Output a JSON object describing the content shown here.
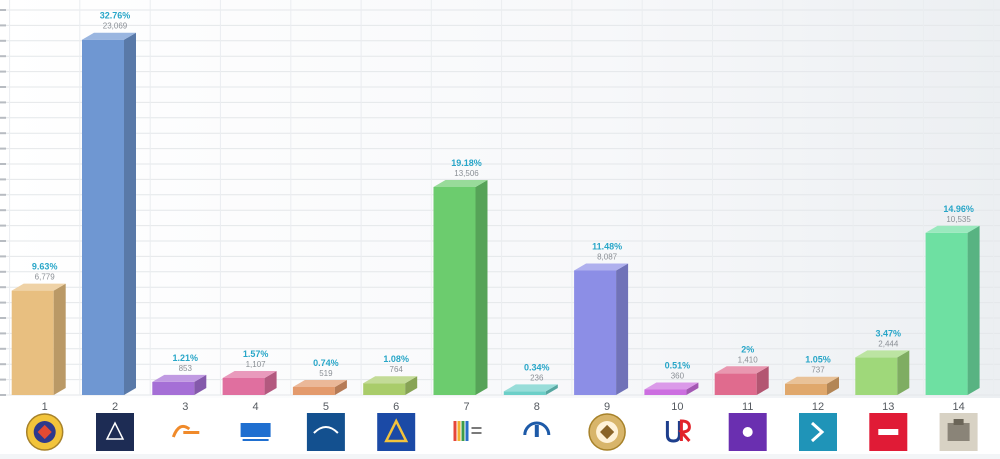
{
  "chart_data": {
    "type": "bar",
    "categories": [
      "1",
      "2",
      "3",
      "4",
      "5",
      "6",
      "7",
      "8",
      "9",
      "10",
      "11",
      "12",
      "13",
      "14"
    ],
    "values": [
      6779,
      23069,
      853,
      1107,
      519,
      764,
      13506,
      236,
      8087,
      360,
      1410,
      737,
      2444,
      10535
    ],
    "value_labels": [
      "6,779",
      "23,069",
      "853",
      "1,107",
      "519",
      "764",
      "13,506",
      "236",
      "8,087",
      "360",
      "1,410",
      "737",
      "2,444",
      "10,535"
    ],
    "percent_labels": [
      "9.63%",
      "32.76%",
      "1.21%",
      "1.57%",
      "0.74%",
      "1.08%",
      "19.18%",
      "0.34%",
      "11.48%",
      "0.51%",
      "2%",
      "1.05%",
      "3.47%",
      "14.96%"
    ],
    "colors": [
      "#e8bf80",
      "#6f97d2",
      "#a56fd6",
      "#e06f9f",
      "#e39a6c",
      "#a9cc6a",
      "#6ccc6e",
      "#6ccfc8",
      "#8c8ee6",
      "#cc6ee0",
      "#e06b8e",
      "#e0a86c",
      "#9fd87a",
      "#6ee0a2"
    ],
    "logo_icons": [
      "coat-of-arms-emblem",
      "triangle-emblem",
      "orange-curve-logo",
      "blue-wordmark-logo",
      "wings-emblem",
      "gold-triangle-logo",
      "colored-bars-logo",
      "blue-arc-logo",
      "knot-emblem",
      "ur-logo",
      "purple-heart-logo",
      "teal-chevron-logo",
      "red-wordmark-logo",
      "building-photo-logo"
    ],
    "ylim": [
      0,
      25000
    ],
    "grid": true,
    "title": "",
    "xlabel": "",
    "ylabel": ""
  }
}
